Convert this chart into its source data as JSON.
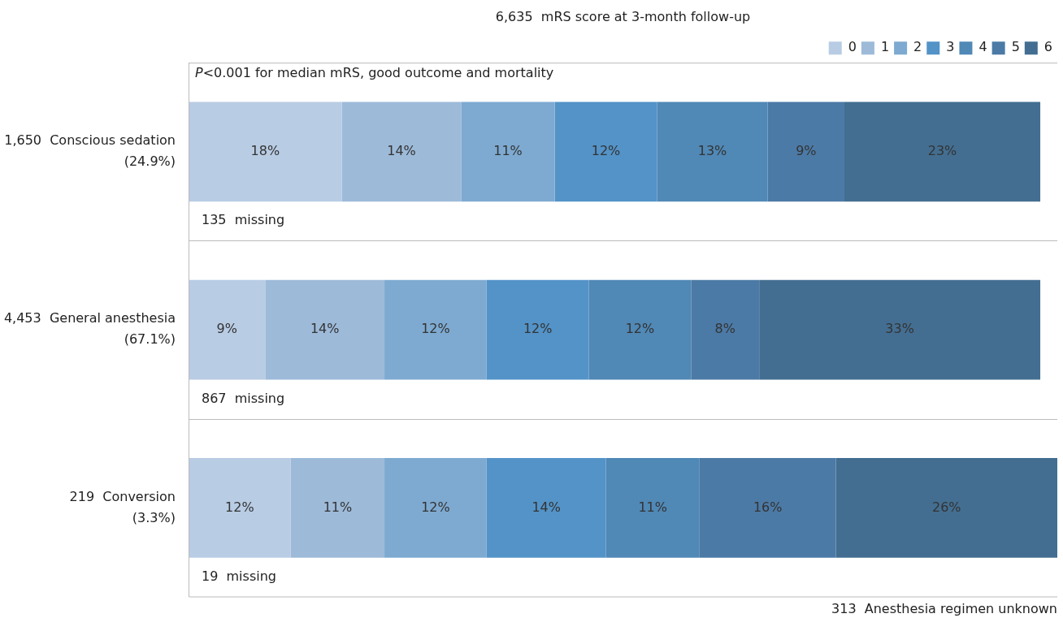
{
  "chart_data": {
    "type": "bar",
    "orientation": "horizontal",
    "stacked": true,
    "title": "6,635  mRS score at 3-month follow-up",
    "categories": [
      "1,650  Conscious sedation\n(24.9%)",
      "4,453  General anesthesia\n(67.1%)",
      "219  Conversion\n(3.3%)"
    ],
    "series": [
      {
        "name": "0",
        "color": "#b8cce4",
        "values": [
          18,
          9,
          12
        ],
        "value_labels": [
          "18%",
          "9%",
          "12%"
        ]
      },
      {
        "name": "1",
        "color": "#9dbad9",
        "values": [
          14,
          14,
          11
        ],
        "value_labels": [
          "14%",
          "14%",
          "11%"
        ]
      },
      {
        "name": "2",
        "color": "#7eaad1",
        "values": [
          11,
          12,
          12
        ],
        "value_labels": [
          "11%",
          "12%",
          "12%"
        ]
      },
      {
        "name": "3",
        "color": "#5393c8",
        "values": [
          12,
          12,
          14
        ],
        "value_labels": [
          "12%",
          "12%",
          "14%"
        ]
      },
      {
        "name": "4",
        "color": "#5088b6",
        "values": [
          13,
          12,
          11
        ],
        "value_labels": [
          "13%",
          "12%",
          "11%"
        ]
      },
      {
        "name": "5",
        "color": "#4c7aa6",
        "values": [
          9,
          8,
          16
        ],
        "value_labels": [
          "9%",
          "8%",
          "16%"
        ]
      },
      {
        "name": "6",
        "color": "#436e91",
        "values": [
          23,
          33,
          26
        ],
        "value_labels": [
          "23%",
          "33%",
          "26%"
        ]
      }
    ],
    "legend": "top right",
    "annotations": [
      "P<0.001 for median mRS, good outcome and mortality",
      "135  missing",
      "867  missing",
      "19  missing",
      "313  Anesthesia regimen unknown"
    ]
  }
}
